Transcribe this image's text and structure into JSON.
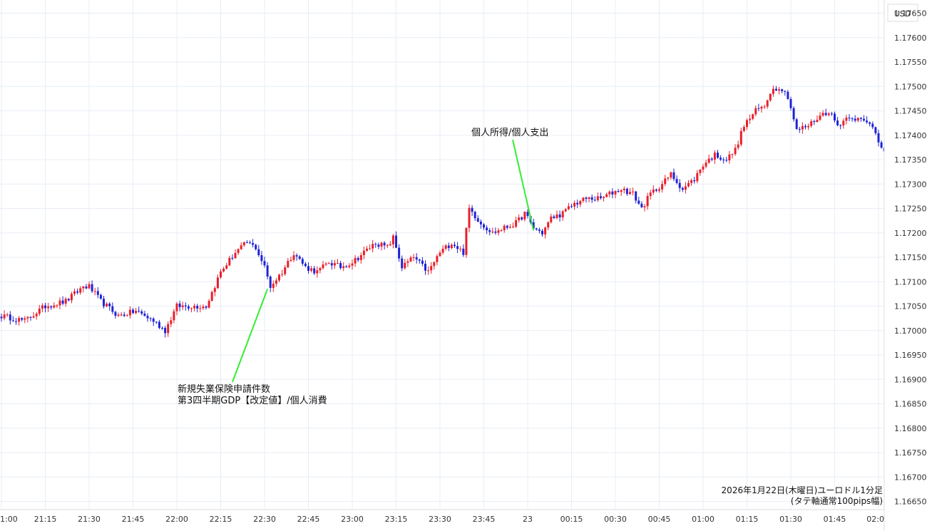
{
  "chart_data": {
    "type": "candlestick",
    "currency_label": "USD",
    "caption": [
      "2026年1月22日(木曜日)ユーロドル1分足",
      "(タテ軸通常100pips幅)"
    ],
    "x_ticks": [
      "1:00",
      "21:15",
      "21:30",
      "21:45",
      "22:00",
      "22:15",
      "22:30",
      "22:45",
      "23:00",
      "23:15",
      "23:30",
      "23:45",
      "23",
      "00:15",
      "00:30",
      "00:45",
      "01:00",
      "01:15",
      "01:30",
      "01:45",
      "02:0"
    ],
    "y_ticks": [
      "1.16650",
      "1.16700",
      "1.16750",
      "1.16800",
      "1.16850",
      "1.16900",
      "1.16950",
      "1.17000",
      "1.17050",
      "1.17100",
      "1.17150",
      "1.17200",
      "1.17250",
      "1.17300",
      "1.17350",
      "1.17400",
      "1.17450",
      "1.17500",
      "1.17550",
      "1.17600",
      "1.17650"
    ],
    "ylim": [
      1.1665,
      1.1765
    ],
    "colors": {
      "up": "#e8202a",
      "down": "#1f23d6",
      "annotation_line": "#33ee33",
      "grid": "#e8eef6"
    },
    "annotations": [
      {
        "lines": [
          "新規失業保険申請件数",
          "第3四半期GDP【改定値】/個人消費"
        ],
        "candle_index": 91,
        "price": 1.17085
      },
      {
        "lines": [
          "個人所得/個人支出"
        ],
        "candle_index": 182,
        "price": 1.17205
      }
    ],
    "close_path": [
      [
        0,
        1.1703
      ],
      [
        8,
        1.1702
      ],
      [
        15,
        1.1705
      ],
      [
        22,
        1.1706
      ],
      [
        28,
        1.1709
      ],
      [
        30,
        1.1709
      ],
      [
        34,
        1.1706
      ],
      [
        40,
        1.1703
      ],
      [
        46,
        1.1704
      ],
      [
        52,
        1.1702
      ],
      [
        56,
        1.17
      ],
      [
        60,
        1.1705
      ],
      [
        64,
        1.1705
      ],
      [
        70,
        1.1705
      ],
      [
        75,
        1.1712
      ],
      [
        80,
        1.1716
      ],
      [
        84,
        1.1718
      ],
      [
        87,
        1.1717
      ],
      [
        90,
        1.1713
      ],
      [
        92,
        1.1709
      ],
      [
        96,
        1.1712
      ],
      [
        100,
        1.1716
      ],
      [
        104,
        1.1713
      ],
      [
        108,
        1.1712
      ],
      [
        112,
        1.1714
      ],
      [
        116,
        1.1713
      ],
      [
        120,
        1.1714
      ],
      [
        124,
        1.1716
      ],
      [
        128,
        1.1718
      ],
      [
        132,
        1.1717
      ],
      [
        134,
        1.1719
      ],
      [
        137,
        1.1713
      ],
      [
        141,
        1.1715
      ],
      [
        146,
        1.1712
      ],
      [
        150,
        1.1716
      ],
      [
        154,
        1.1718
      ],
      [
        158,
        1.1716
      ],
      [
        160,
        1.1725
      ],
      [
        164,
        1.1722
      ],
      [
        168,
        1.172
      ],
      [
        176,
        1.1722
      ],
      [
        179,
        1.1724
      ],
      [
        182,
        1.1721
      ],
      [
        185,
        1.172
      ],
      [
        188,
        1.1723
      ],
      [
        192,
        1.1724
      ],
      [
        196,
        1.1726
      ],
      [
        200,
        1.1727
      ],
      [
        205,
        1.1727
      ],
      [
        208,
        1.1728
      ],
      [
        212,
        1.1729
      ],
      [
        216,
        1.1728
      ],
      [
        219,
        1.1725
      ],
      [
        222,
        1.1728
      ],
      [
        226,
        1.173
      ],
      [
        229,
        1.1732
      ],
      [
        233,
        1.1729
      ],
      [
        237,
        1.1731
      ],
      [
        240,
        1.1734
      ],
      [
        244,
        1.1736
      ],
      [
        248,
        1.1735
      ],
      [
        251,
        1.1737
      ],
      [
        254,
        1.1742
      ],
      [
        258,
        1.1745
      ],
      [
        261,
        1.1746
      ],
      [
        263,
        1.1749
      ],
      [
        266,
        1.175
      ],
      [
        269,
        1.1748
      ],
      [
        272,
        1.1741
      ],
      [
        276,
        1.1742
      ],
      [
        280,
        1.1744
      ],
      [
        283,
        1.1745
      ],
      [
        286,
        1.1742
      ],
      [
        290,
        1.1744
      ],
      [
        294,
        1.1743
      ],
      [
        298,
        1.1742
      ],
      [
        300,
        1.1739
      ],
      [
        302,
        1.1737
      ]
    ]
  }
}
